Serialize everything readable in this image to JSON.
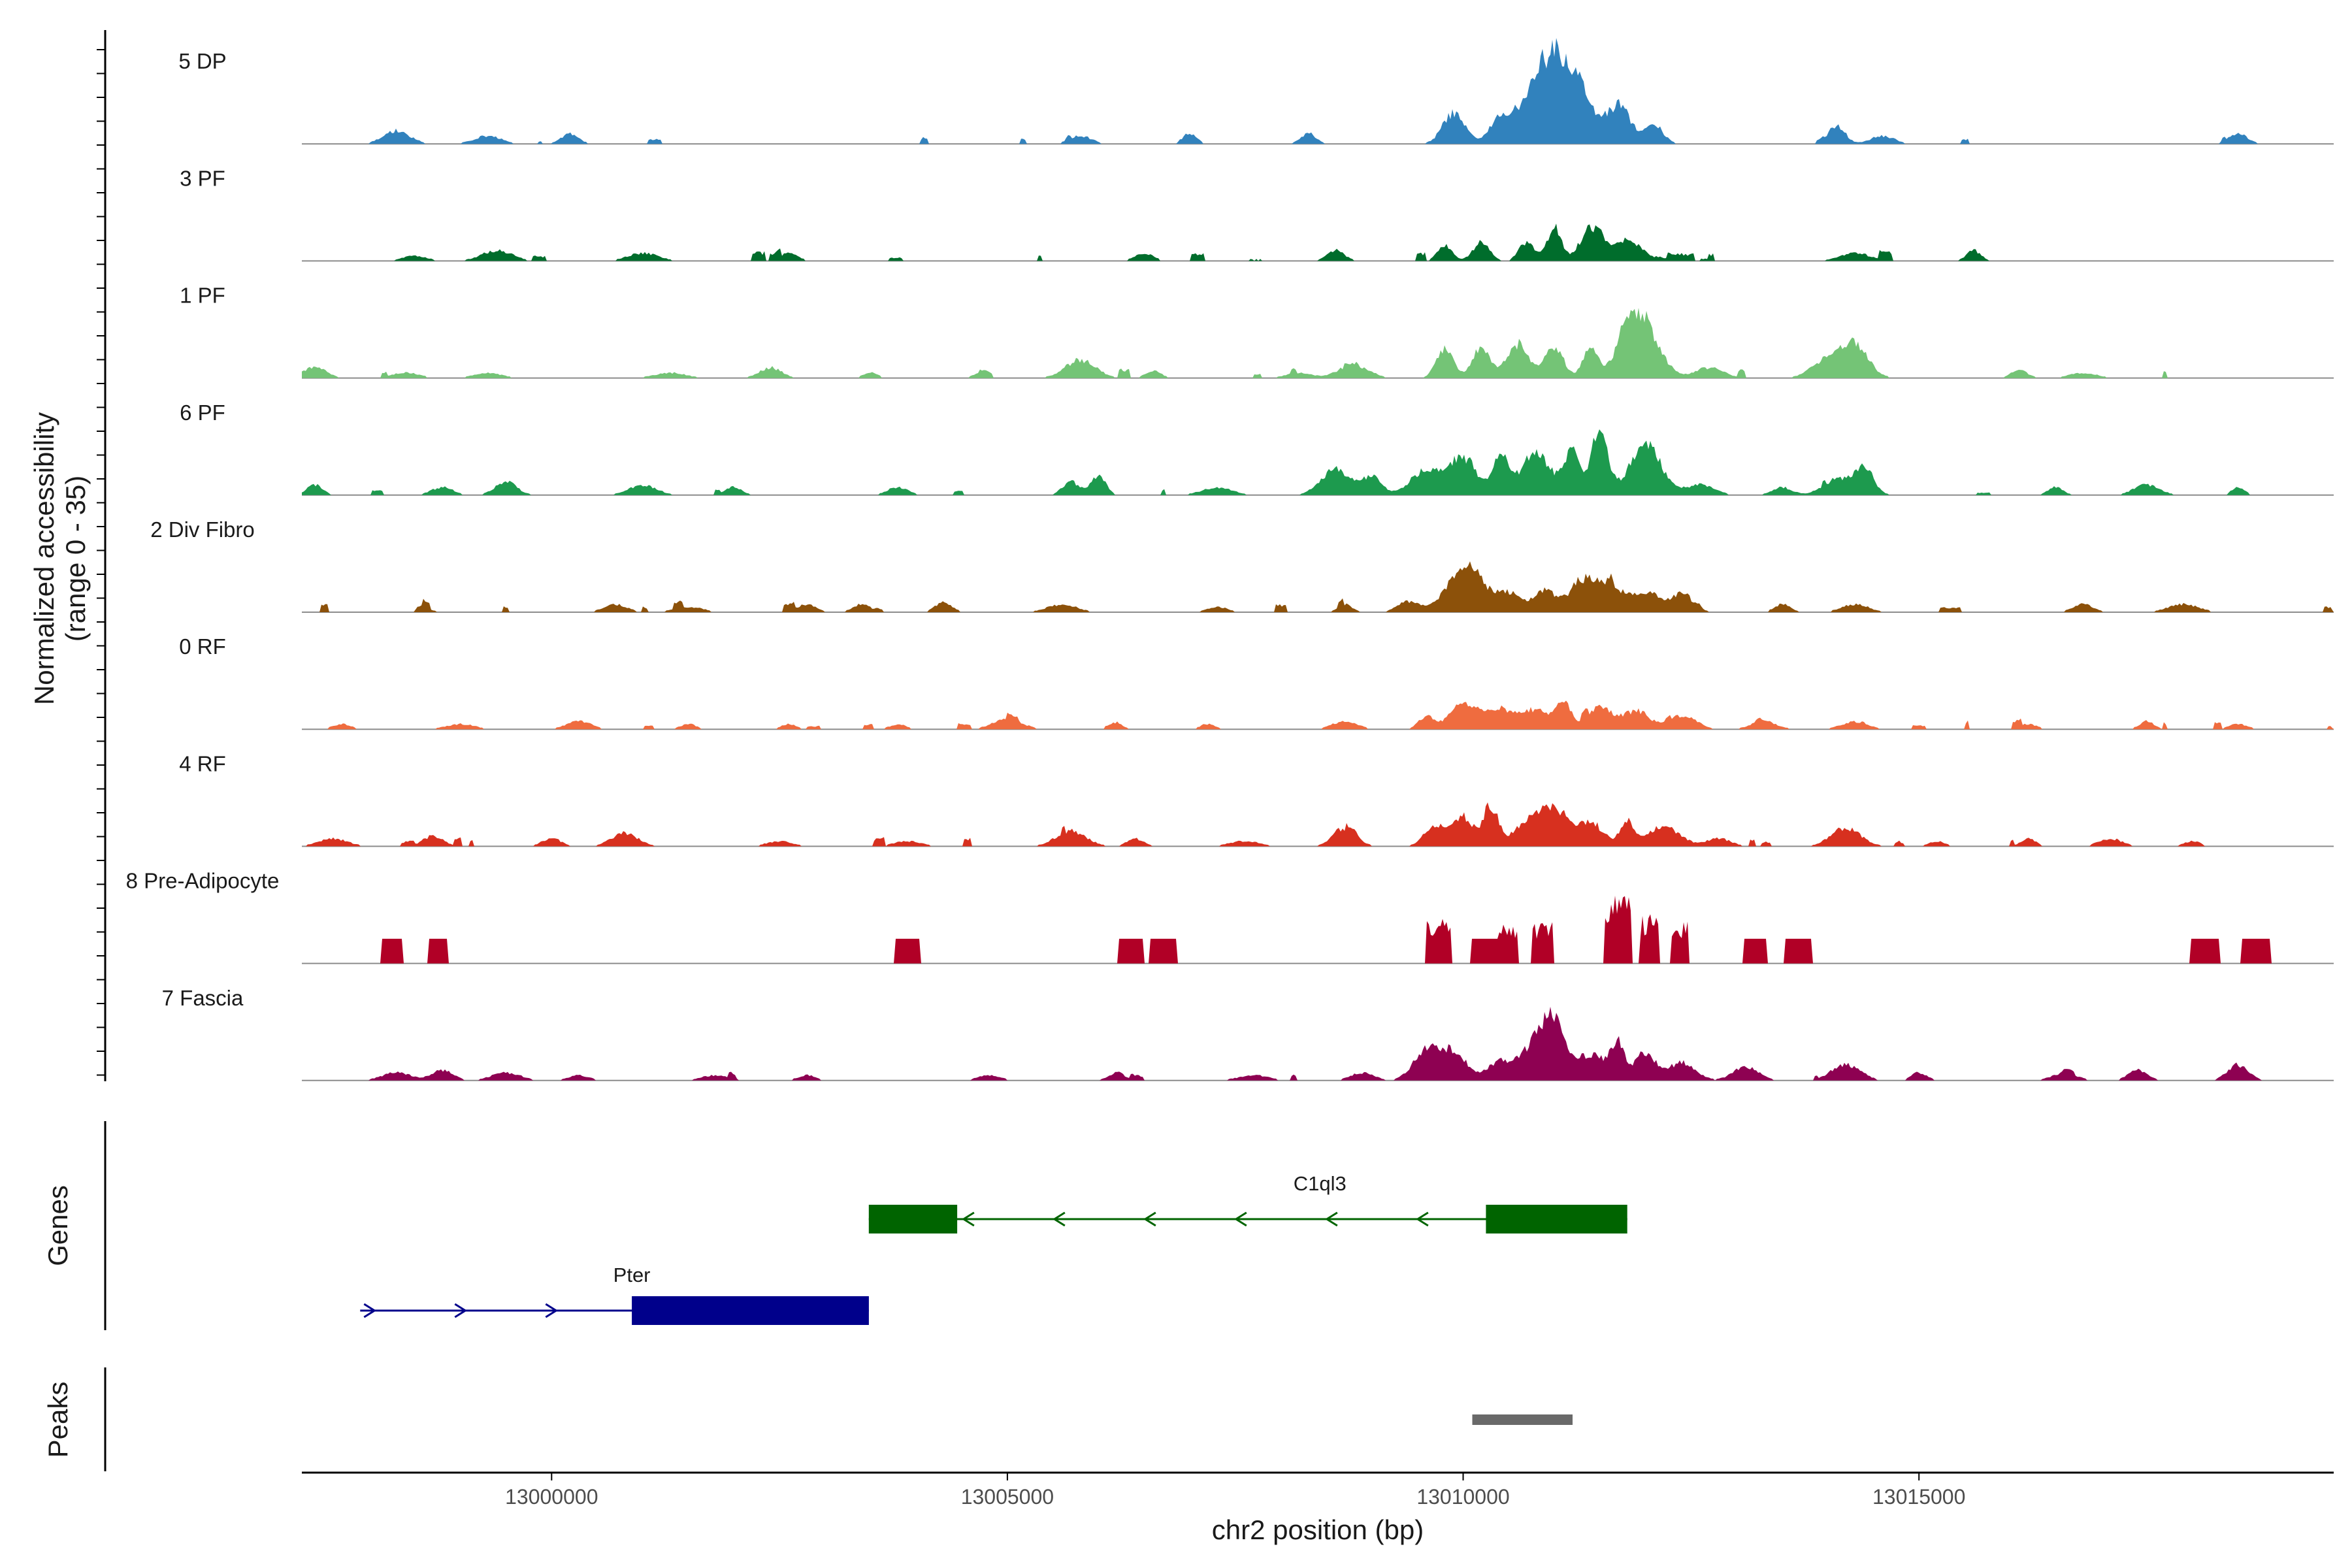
{
  "chart_data": {
    "type": "area",
    "title": "",
    "ylabel_line1": "Normalized accessibility",
    "ylabel_line2": "(range 0 - 35)",
    "xlabel": "chr2 position (bp)",
    "xlim": [
      12997260,
      13019550
    ],
    "ylim": [
      0,
      35
    ],
    "x_ticks": [
      13000000,
      13005000,
      13010000,
      13015000
    ],
    "x_tick_labels": [
      "13000000",
      "13005000",
      "13010000",
      "13015000"
    ],
    "tracks": [
      {
        "name": "5 DP",
        "color": "#3182bd",
        "seed": 11,
        "peaks": [
          [
            12998300,
            5
          ],
          [
            12999300,
            3
          ],
          [
            13000200,
            4
          ],
          [
            13005800,
            3
          ],
          [
            13007000,
            4
          ],
          [
            13008300,
            4
          ],
          [
            13009900,
            12
          ],
          [
            13010400,
            9
          ],
          [
            13010700,
            14
          ],
          [
            13011000,
            34
          ],
          [
            13011300,
            18
          ],
          [
            13011700,
            15
          ],
          [
            13012100,
            7
          ],
          [
            13014100,
            7
          ],
          [
            13014600,
            3
          ],
          [
            13018500,
            4
          ]
        ]
      },
      {
        "name": "3 PF",
        "color": "#006d2c",
        "seed": 23,
        "peaks": [
          [
            12998500,
            2
          ],
          [
            12999400,
            4
          ],
          [
            13001000,
            3
          ],
          [
            13002600,
            3
          ],
          [
            13006500,
            3
          ],
          [
            13008600,
            4
          ],
          [
            13009800,
            6
          ],
          [
            13010200,
            7
          ],
          [
            13010700,
            7
          ],
          [
            13011000,
            13
          ],
          [
            13011400,
            13
          ],
          [
            13011800,
            8
          ],
          [
            13014300,
            3
          ],
          [
            13015600,
            4
          ]
        ]
      },
      {
        "name": "1 PF",
        "color": "#74c476",
        "seed": 37,
        "peaks": [
          [
            12997400,
            4
          ],
          [
            12998400,
            2
          ],
          [
            12999300,
            2
          ],
          [
            13001300,
            2
          ],
          [
            13002400,
            4
          ],
          [
            13003500,
            2
          ],
          [
            13004700,
            2
          ],
          [
            13005800,
            7
          ],
          [
            13006600,
            3
          ],
          [
            13008200,
            2
          ],
          [
            13008800,
            5
          ],
          [
            13009800,
            11
          ],
          [
            13010200,
            12
          ],
          [
            13010600,
            13
          ],
          [
            13011000,
            12
          ],
          [
            13011400,
            11
          ],
          [
            13011800,
            14
          ],
          [
            13012000,
            18
          ],
          [
            13012700,
            4
          ],
          [
            13014000,
            7
          ],
          [
            13014300,
            12
          ],
          [
            13016100,
            3
          ],
          [
            13016800,
            2
          ]
        ]
      },
      {
        "name": "6 PF",
        "color": "#1d9a4e",
        "seed": 53,
        "peaks": [
          [
            12997400,
            4
          ],
          [
            12998800,
            3
          ],
          [
            12999500,
            5
          ],
          [
            13001000,
            4
          ],
          [
            13002000,
            3
          ],
          [
            13003800,
            3
          ],
          [
            13005700,
            5
          ],
          [
            13006000,
            7
          ],
          [
            13007300,
            3
          ],
          [
            13008600,
            10
          ],
          [
            13009000,
            7
          ],
          [
            13009600,
            10
          ],
          [
            13010000,
            14
          ],
          [
            13010400,
            15
          ],
          [
            13010800,
            16
          ],
          [
            13011200,
            17
          ],
          [
            13011500,
            22
          ],
          [
            13012000,
            19
          ],
          [
            13012600,
            4
          ],
          [
            13013500,
            3
          ],
          [
            13014100,
            6
          ],
          [
            13014400,
            10
          ],
          [
            13016500,
            3
          ],
          [
            13017500,
            4
          ],
          [
            13018500,
            3
          ]
        ]
      },
      {
        "name": "2 Div Fibro",
        "color": "#8c510a",
        "seed": 71,
        "peaks": [
          [
            12998600,
            2
          ],
          [
            13000700,
            3
          ],
          [
            13001500,
            2
          ],
          [
            13002800,
            3
          ],
          [
            13003400,
            3
          ],
          [
            13004300,
            4
          ],
          [
            13005600,
            3
          ],
          [
            13007300,
            2
          ],
          [
            13008700,
            3
          ],
          [
            13009400,
            4
          ],
          [
            13009900,
            8
          ],
          [
            13010100,
            13
          ],
          [
            13010500,
            7
          ],
          [
            13010900,
            8
          ],
          [
            13011300,
            12
          ],
          [
            13011600,
            10
          ],
          [
            13012000,
            8
          ],
          [
            13012400,
            7
          ],
          [
            13013500,
            3
          ],
          [
            13014300,
            3
          ],
          [
            13016800,
            3
          ],
          [
            13017900,
            3
          ]
        ]
      },
      {
        "name": "0 RF",
        "color": "#ef6c3f",
        "seed": 89,
        "peaks": [
          [
            12997700,
            2
          ],
          [
            12999000,
            2
          ],
          [
            13000300,
            3
          ],
          [
            13001500,
            2
          ],
          [
            13002600,
            2
          ],
          [
            13003800,
            2
          ],
          [
            13005000,
            4
          ],
          [
            13006200,
            2
          ],
          [
            13007200,
            2
          ],
          [
            13008700,
            3
          ],
          [
            13009600,
            5
          ],
          [
            13010000,
            10
          ],
          [
            13010400,
            8
          ],
          [
            13010800,
            7
          ],
          [
            13011100,
            10
          ],
          [
            13011500,
            8
          ],
          [
            13011900,
            7
          ],
          [
            13012400,
            5
          ],
          [
            13013300,
            3
          ],
          [
            13014300,
            3
          ],
          [
            13016200,
            2
          ],
          [
            13017500,
            3
          ],
          [
            13018500,
            2
          ]
        ]
      },
      {
        "name": "4 RF",
        "color": "#d7301f",
        "seed": 101,
        "peaks": [
          [
            12997600,
            3
          ],
          [
            12998700,
            4
          ],
          [
            13000000,
            3
          ],
          [
            13000800,
            5
          ],
          [
            13002500,
            2
          ],
          [
            13003900,
            2
          ],
          [
            13005700,
            6
          ],
          [
            13006400,
            3
          ],
          [
            13007600,
            2
          ],
          [
            13008700,
            7
          ],
          [
            13009700,
            8
          ],
          [
            13010000,
            11
          ],
          [
            13010300,
            15
          ],
          [
            13010700,
            9
          ],
          [
            13011000,
            14
          ],
          [
            13011400,
            9
          ],
          [
            13011800,
            10
          ],
          [
            13012200,
            8
          ],
          [
            13012800,
            3
          ],
          [
            13014200,
            7
          ],
          [
            13015200,
            2
          ],
          [
            13016200,
            3
          ],
          [
            13017100,
            3
          ],
          [
            13018000,
            2
          ]
        ]
      },
      {
        "name": "8 Pre-Adipocyte",
        "color": "#b10026",
        "seed": 131,
        "blocky": true,
        "peaks": [
          [
            12998250,
            8
          ],
          [
            12998750,
            8
          ],
          [
            13003900,
            8
          ],
          [
            13006350,
            8
          ],
          [
            13006700,
            8
          ],
          [
            13009730,
            15
          ],
          [
            13010250,
            8
          ],
          [
            13010500,
            15
          ],
          [
            13010870,
            14
          ],
          [
            13011700,
            23
          ],
          [
            13012050,
            16
          ],
          [
            13012370,
            14
          ],
          [
            13013200,
            8
          ],
          [
            13013680,
            8
          ],
          [
            13018130,
            8
          ],
          [
            13018700,
            8
          ]
        ]
      },
      {
        "name": "7 Fascia",
        "color": "#8e0152",
        "seed": 149,
        "peaks": [
          [
            12998300,
            3
          ],
          [
            12998800,
            4
          ],
          [
            12999500,
            3
          ],
          [
            13000300,
            2
          ],
          [
            13001800,
            2
          ],
          [
            13002800,
            2
          ],
          [
            13004800,
            2
          ],
          [
            13006200,
            3
          ],
          [
            13007700,
            2
          ],
          [
            13008900,
            3
          ],
          [
            13009600,
            11
          ],
          [
            13009900,
            10
          ],
          [
            13010400,
            7
          ],
          [
            13010800,
            14
          ],
          [
            13011000,
            18
          ],
          [
            13011400,
            10
          ],
          [
            13011700,
            13
          ],
          [
            13012000,
            11
          ],
          [
            13012400,
            7
          ],
          [
            13013100,
            5
          ],
          [
            13014200,
            6
          ],
          [
            13015000,
            3
          ],
          [
            13016600,
            3
          ],
          [
            13017400,
            4
          ],
          [
            13018500,
            6
          ]
        ]
      }
    ],
    "genes": [
      {
        "name": "C1ql3",
        "strand": "-",
        "color": "#006400",
        "start": 13003480,
        "end": 13011800,
        "exons": [
          [
            13003480,
            13004450
          ],
          [
            13010250,
            13011800
          ]
        ]
      },
      {
        "name": "Pter",
        "strand": "+",
        "color": "#00008b",
        "start": 12997900,
        "end": 13003480,
        "exons": [
          [
            13000880,
            13003480
          ]
        ]
      }
    ],
    "peaks_track": {
      "name": "Peaks",
      "color": "#696969",
      "regions": [
        [
          13010100,
          13011200
        ]
      ]
    }
  },
  "panels": {
    "genes_title": "Genes",
    "peaks_title": "Peaks"
  }
}
